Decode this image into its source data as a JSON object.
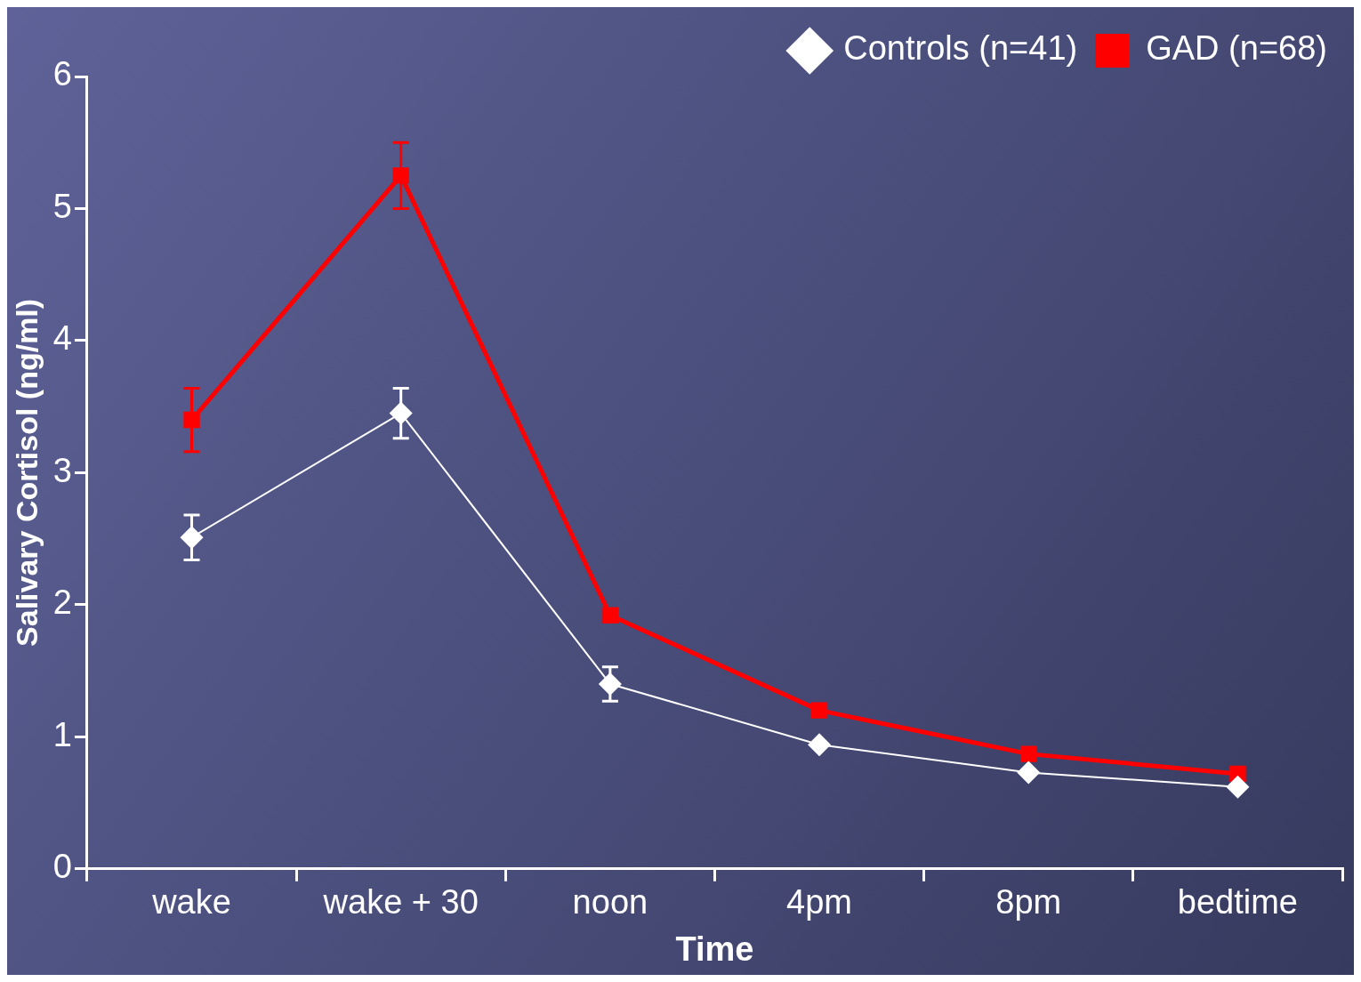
{
  "chart_data": {
    "type": "line",
    "xlabel": "Time",
    "ylabel": "Salivary Cortisol (ng/ml)",
    "categories": [
      "wake",
      "wake + 30",
      "noon",
      "4pm",
      "8pm",
      "bedtime"
    ],
    "ylim": [
      0,
      6
    ],
    "yticks": [
      0,
      1,
      2,
      3,
      4,
      5,
      6
    ],
    "grid": false,
    "legend": "top right",
    "series": [
      {
        "name": "Controls (n=41)",
        "color": "#ffffff",
        "marker": "diamond",
        "values": [
          2.51,
          3.45,
          1.4,
          0.94,
          0.73,
          0.62
        ],
        "errors": [
          0.17,
          0.19,
          0.13,
          null,
          null,
          null
        ]
      },
      {
        "name": "GAD (n=68)",
        "color": "#ff0000",
        "marker": "square",
        "values": [
          3.4,
          5.25,
          1.92,
          1.2,
          0.87,
          0.72
        ],
        "errors": [
          0.24,
          0.25,
          null,
          null,
          null,
          null
        ]
      }
    ]
  }
}
